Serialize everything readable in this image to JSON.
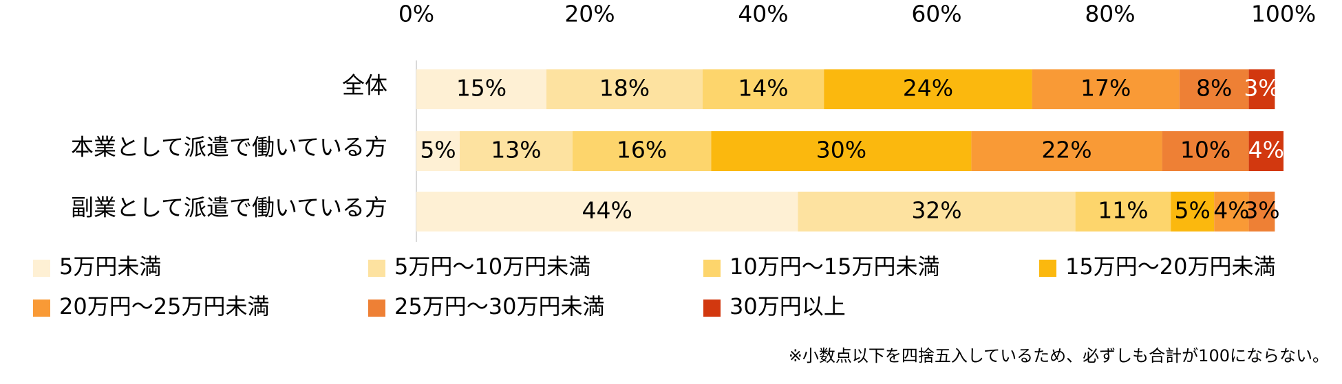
{
  "chart_data": {
    "type": "stacked_bar_horizontal",
    "categories": [
      "全体",
      "本業として派遣で働いている方",
      "副業として派遣で働いている方"
    ],
    "xlim": [
      0,
      100
    ],
    "xticks": [
      {
        "value": 0,
        "label": "0%"
      },
      {
        "value": 20,
        "label": "20%"
      },
      {
        "value": 40,
        "label": "40%"
      },
      {
        "value": 60,
        "label": "60%"
      },
      {
        "value": 80,
        "label": "80%"
      },
      {
        "value": 100,
        "label": "100%"
      }
    ],
    "series": [
      {
        "name": "5万円未満",
        "color": "#fef0d4",
        "label_color": "#000000",
        "values": [
          15,
          5,
          44
        ],
        "value_labels": [
          "15%",
          "5%",
          "44%"
        ]
      },
      {
        "name": "5万円～10万円未満",
        "color": "#fde2a0",
        "label_color": "#000000",
        "values": [
          18,
          13,
          32
        ],
        "value_labels": [
          "18%",
          "13%",
          "32%"
        ]
      },
      {
        "name": "10万円～15万円未満",
        "color": "#fdd56c",
        "label_color": "#000000",
        "values": [
          14,
          16,
          11
        ],
        "value_labels": [
          "14%",
          "16%",
          "11%"
        ]
      },
      {
        "name": "15万円～20万円未満",
        "color": "#fbb80e",
        "label_color": "#000000",
        "values": [
          24,
          30,
          5
        ],
        "value_labels": [
          "24%",
          "30%",
          "5%"
        ]
      },
      {
        "name": "20万円～25万円未満",
        "color": "#f99a36",
        "label_color": "#000000",
        "values": [
          17,
          22,
          4
        ],
        "value_labels": [
          "17%",
          "22%",
          "4%"
        ]
      },
      {
        "name": "25万円～30万円未満",
        "color": "#ee8035",
        "label_color": "#000000",
        "values": [
          8,
          10,
          3
        ],
        "value_labels": [
          "8%",
          "10%",
          "3%"
        ]
      },
      {
        "name": "30万円以上",
        "color": "#d2380f",
        "label_color": "#ffffff",
        "values": [
          3,
          4,
          null
        ],
        "value_labels": [
          "3%",
          "4%",
          null
        ]
      }
    ],
    "annotation": "※小数点以下を四捨五入しているため、必ずしも合計が100にならない。"
  }
}
